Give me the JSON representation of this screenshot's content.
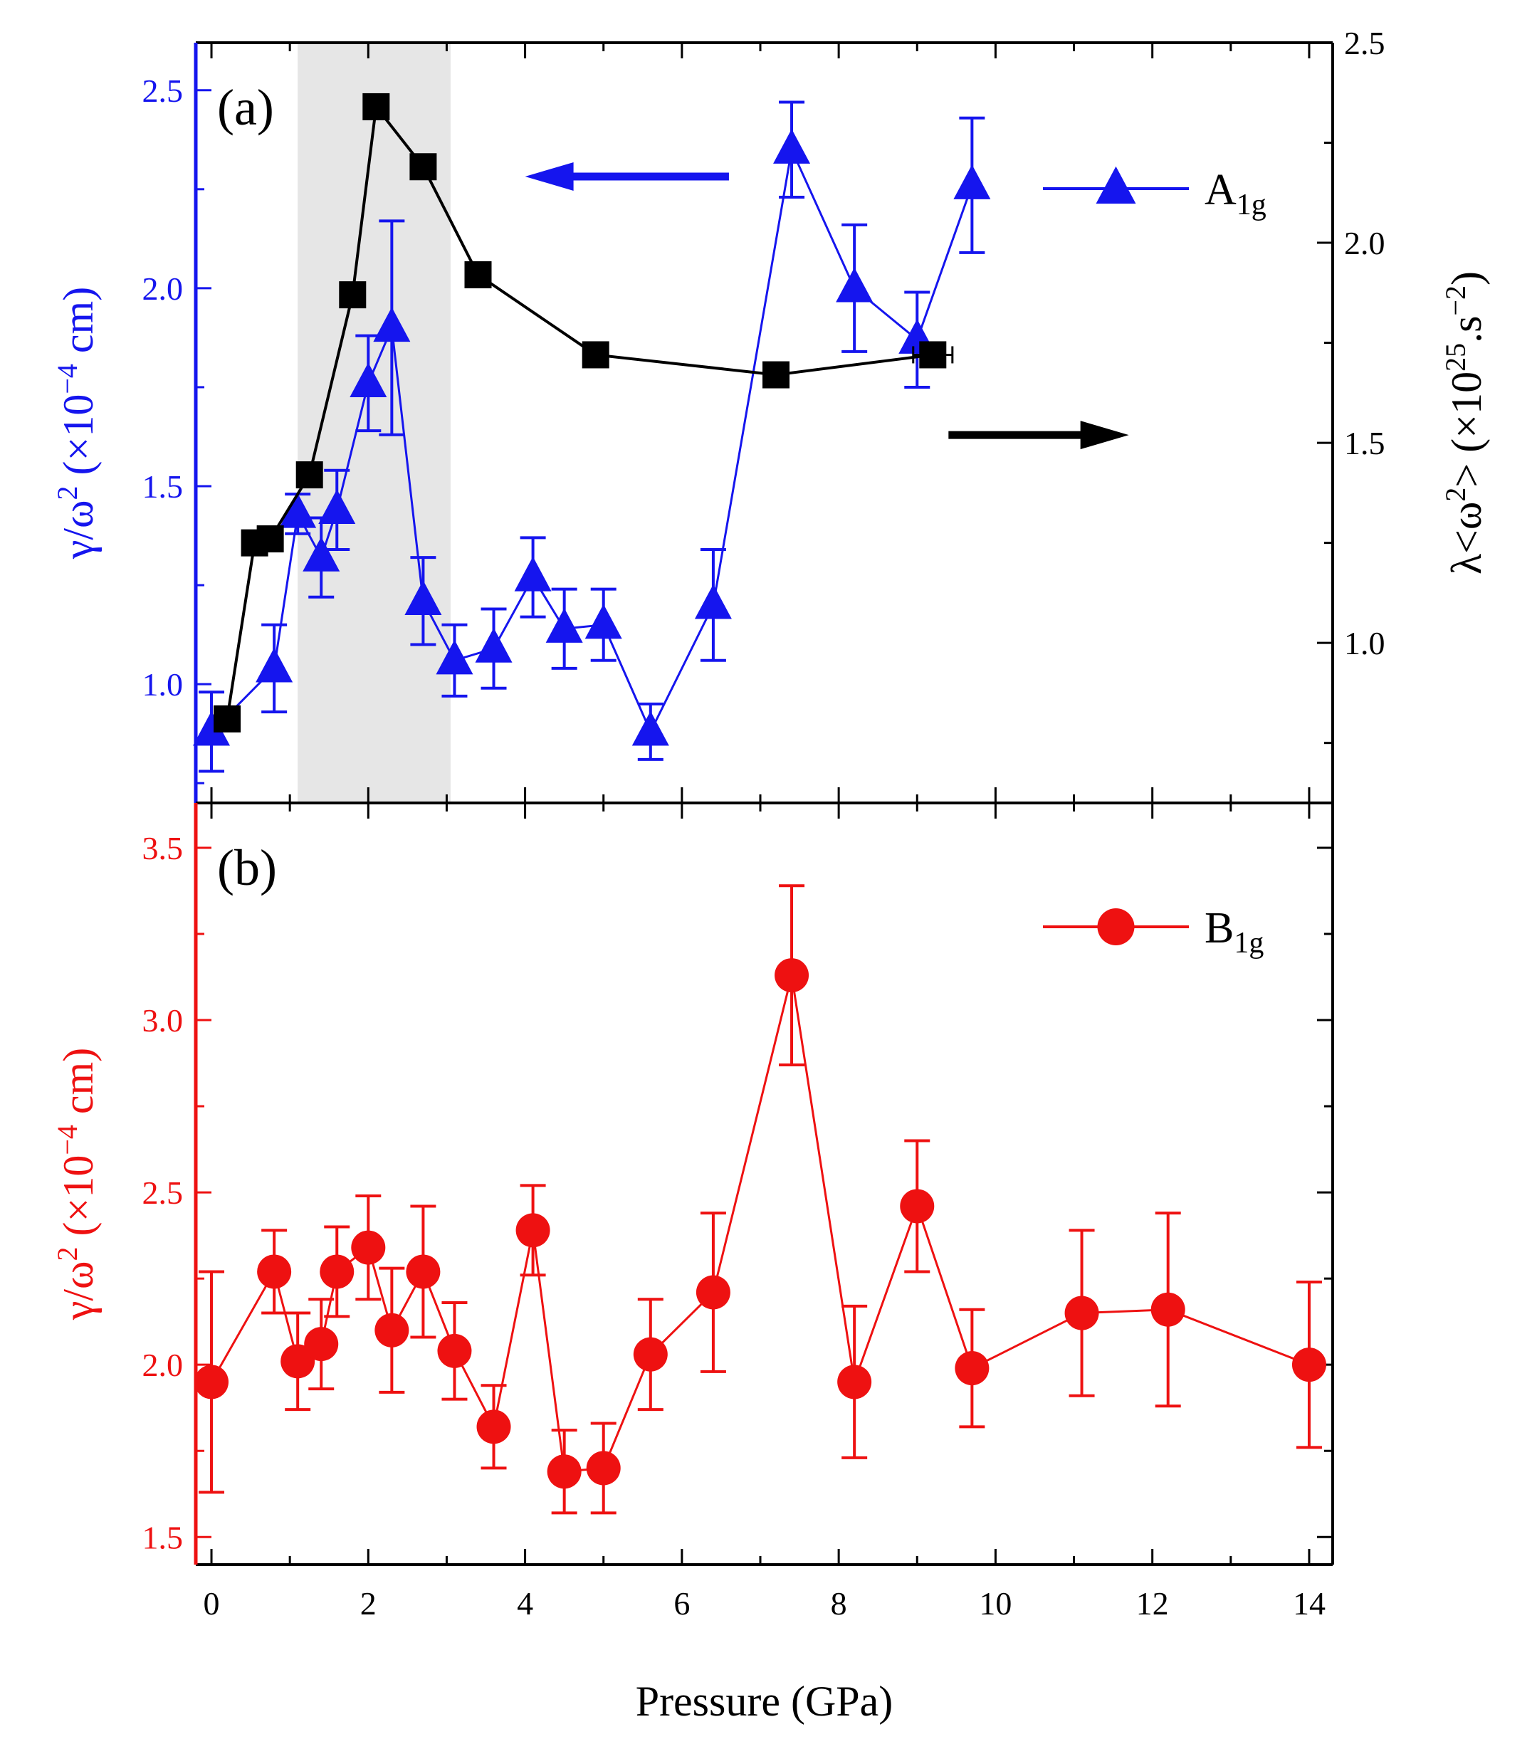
{
  "chart_data": {
    "type": "scatter",
    "xlabel": "Pressure (GPa)",
    "xlim": [
      -0.2,
      14.3
    ],
    "xticks": [
      0,
      2,
      4,
      6,
      8,
      10,
      12,
      14
    ],
    "shaded_region": {
      "x_from": 1.1,
      "x_to": 3.05,
      "color": "#e6e6e6"
    },
    "colors": {
      "a1g": "#1515ee",
      "lambda": "#000000",
      "b1g": "#ee1111",
      "shade": "#e6e6e6"
    },
    "panels": [
      {
        "id": "a",
        "label": "(a)",
        "ylabel_left": {
          "prefix": "γ/ω",
          "sup1": "2",
          "mid": " (×10",
          "sup2": "−4",
          "suffix": " cm)"
        },
        "ylim_left": [
          0.7,
          2.62
        ],
        "yticks_left": [
          "1.0",
          "1.5",
          "2.0",
          "2.5"
        ],
        "ylabel_right": {
          "prefix": "λ<ω",
          "sup1": "2",
          "mid": "> (×10",
          "sup2": "25",
          "mid2": ".s",
          "sup3": "−2",
          "suffix": ")"
        },
        "ylim_right": [
          0.6,
          2.5
        ],
        "yticks_right": [
          "1.0",
          "1.5",
          "2.0",
          "2.5"
        ],
        "series": [
          {
            "name": "A1g",
            "legend_main": "A",
            "legend_sub": "1g",
            "axis": "left",
            "marker": "triangle",
            "color": "#1515ee",
            "x": [
              0.0,
              0.8,
              1.1,
              1.4,
              1.6,
              2.0,
              2.3,
              2.7,
              3.1,
              3.6,
              4.1,
              4.5,
              5.0,
              5.6,
              6.4,
              7.4,
              8.2,
              9.0,
              9.7
            ],
            "y": [
              0.88,
              1.04,
              1.43,
              1.32,
              1.44,
              1.76,
              1.9,
              1.21,
              1.06,
              1.09,
              1.27,
              1.14,
              1.15,
              0.88,
              1.2,
              2.35,
              2.0,
              1.87,
              2.26
            ],
            "err": [
              0.1,
              0.11,
              0.05,
              0.1,
              0.1,
              0.12,
              0.27,
              0.11,
              0.09,
              0.1,
              0.1,
              0.1,
              0.09,
              0.07,
              0.14,
              0.12,
              0.16,
              0.12,
              0.17
            ]
          },
          {
            "name": "λ<ω²>",
            "axis": "right",
            "marker": "square",
            "color": "#000000",
            "x": [
              0.2,
              0.55,
              0.75,
              1.25,
              1.8,
              2.1,
              2.7,
              3.4,
              4.9,
              7.2,
              9.2
            ],
            "y": [
              0.81,
              1.25,
              1.26,
              1.42,
              1.87,
              2.34,
              2.19,
              1.92,
              1.72,
              1.67,
              1.72
            ],
            "xerr": [
              0,
              0,
              0,
              0,
              0,
              0,
              0,
              0,
              0,
              0,
              0.25
            ]
          }
        ],
        "arrows": [
          {
            "direction": "left",
            "target_axis": "left",
            "y_frac": 0.176,
            "x_from": 6.6,
            "x_to": 4.0,
            "color": "#1515ee"
          },
          {
            "direction": "right",
            "target_axis": "right",
            "y_frac": 0.516,
            "x_from": 9.4,
            "x_to": 11.7,
            "color": "#000000"
          }
        ]
      },
      {
        "id": "b",
        "label": "(b)",
        "ylabel_left": {
          "prefix": "γ/ω",
          "sup1": "2",
          "mid": " (×10",
          "sup2": "−4",
          "suffix": " cm)"
        },
        "ylim_left": [
          1.42,
          3.63
        ],
        "yticks_left": [
          "1.5",
          "2.0",
          "2.5",
          "3.0",
          "3.5"
        ],
        "series": [
          {
            "name": "B1g",
            "legend_main": "B",
            "legend_sub": "1g",
            "axis": "left",
            "marker": "circle",
            "color": "#ee1111",
            "x": [
              0.0,
              0.8,
              1.1,
              1.4,
              1.6,
              2.0,
              2.3,
              2.7,
              3.1,
              3.6,
              4.1,
              4.5,
              5.0,
              5.6,
              6.4,
              7.4,
              8.2,
              9.0,
              9.7,
              11.1,
              12.2,
              14.0
            ],
            "y": [
              1.95,
              2.27,
              2.01,
              2.06,
              2.27,
              2.34,
              2.1,
              2.27,
              2.04,
              1.82,
              2.39,
              1.69,
              1.7,
              2.03,
              2.21,
              3.13,
              1.95,
              2.46,
              1.99,
              2.15,
              2.16,
              2.0
            ],
            "err": [
              0.32,
              0.12,
              0.14,
              0.13,
              0.13,
              0.15,
              0.18,
              0.19,
              0.14,
              0.12,
              0.13,
              0.12,
              0.13,
              0.16,
              0.23,
              0.26,
              0.22,
              0.19,
              0.17,
              0.24,
              0.28,
              0.24
            ]
          }
        ]
      }
    ]
  }
}
